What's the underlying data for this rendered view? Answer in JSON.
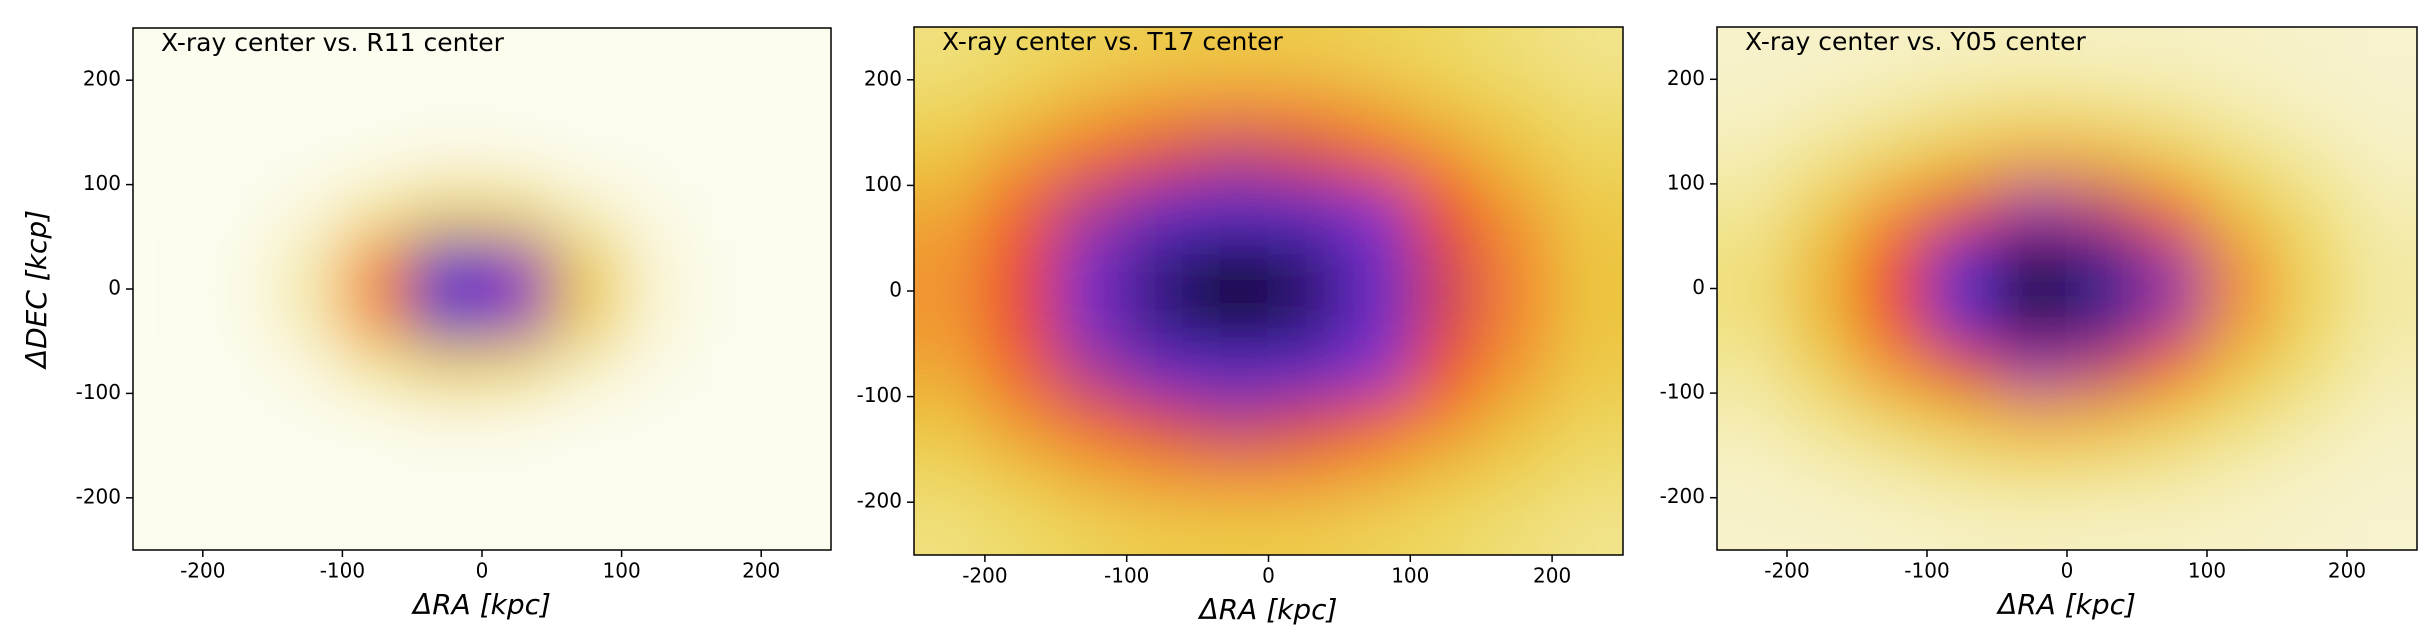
{
  "chart_data": [
    {
      "type": "heatmap",
      "title": "X-ray center vs. R11 center",
      "xlabel": "ΔRA [kpc]",
      "ylabel": "ΔDEC [kcp]",
      "xlim": [
        -250,
        250
      ],
      "ylim": [
        -250,
        250
      ],
      "xticks": [
        -200,
        -100,
        0,
        100,
        200
      ],
      "yticks": [
        -200,
        -100,
        0,
        100,
        200
      ],
      "xbins": [
        -250,
        -200,
        -150,
        -100,
        -50,
        0,
        50,
        100,
        150,
        200,
        250
      ],
      "ybins": [
        -250,
        -200,
        -150,
        -100,
        -50,
        0,
        50,
        100,
        150,
        200,
        250
      ],
      "vlim": [
        0,
        1
      ],
      "cmap": [
        "#fdfdf3",
        "#f5eebb",
        "#eedc6a",
        "#ecc13a",
        "#f3872f",
        "#f04727",
        "#8a2fc8",
        "#4a2dc8",
        "#000000"
      ],
      "values": [
        [
          0.01,
          0.01,
          0.01,
          0.01,
          0.01,
          0.01,
          0.01,
          0.01,
          0.01,
          0.01
        ],
        [
          0.01,
          0.01,
          0.01,
          0.01,
          0.01,
          0.01,
          0.01,
          0.01,
          0.01,
          0.01
        ],
        [
          0.01,
          0.01,
          0.01,
          0.02,
          0.04,
          0.03,
          0.01,
          0.01,
          0.01,
          0.01
        ],
        [
          0.01,
          0.01,
          0.05,
          0.18,
          0.31,
          0.27,
          0.12,
          0.03,
          0.01,
          0.01
        ],
        [
          0.01,
          0.02,
          0.14,
          0.49,
          0.85,
          0.74,
          0.33,
          0.07,
          0.01,
          0.01
        ],
        [
          0.01,
          0.02,
          0.14,
          0.49,
          0.85,
          0.74,
          0.33,
          0.07,
          0.01,
          0.01
        ],
        [
          0.01,
          0.01,
          0.05,
          0.18,
          0.31,
          0.27,
          0.12,
          0.03,
          0.01,
          0.01
        ],
        [
          0.01,
          0.01,
          0.01,
          0.02,
          0.04,
          0.03,
          0.01,
          0.01,
          0.01,
          0.01
        ],
        [
          0.01,
          0.01,
          0.01,
          0.01,
          0.01,
          0.01,
          0.01,
          0.01,
          0.01,
          0.01
        ],
        [
          0.01,
          0.01,
          0.01,
          0.01,
          0.01,
          0.01,
          0.01,
          0.01,
          0.01,
          0.01
        ]
      ]
    },
    {
      "type": "heatmap",
      "title": "X-ray center vs. T17 center",
      "xlabel": "ΔRA [kpc]",
      "xlim": [
        -250,
        250
      ],
      "ylim": [
        -250,
        250
      ],
      "xticks": [
        -200,
        -100,
        0,
        100,
        200
      ],
      "yticks": [
        -200,
        -100,
        0,
        100,
        200
      ],
      "xbins": [
        -250,
        -200,
        -150,
        -100,
        -50,
        0,
        50,
        100,
        150,
        200,
        250
      ],
      "ybins": [
        -250,
        -200,
        -150,
        -100,
        -50,
        0,
        50,
        100,
        150,
        200,
        250
      ],
      "vlim": [
        0,
        1
      ],
      "cmap": [
        "#fdfdf3",
        "#f5eebb",
        "#eedc6a",
        "#ecc13a",
        "#f3872f",
        "#f04727",
        "#8a2fc8",
        "#4a2dc8",
        "#000000"
      ],
      "values": [
        [
          0.22,
          0.26,
          0.3,
          0.33,
          0.34,
          0.33,
          0.3,
          0.27,
          0.23,
          0.2
        ],
        [
          0.28,
          0.35,
          0.42,
          0.47,
          0.49,
          0.48,
          0.43,
          0.36,
          0.3,
          0.24
        ],
        [
          0.36,
          0.47,
          0.57,
          0.65,
          0.69,
          0.66,
          0.59,
          0.49,
          0.38,
          0.29
        ],
        [
          0.43,
          0.58,
          0.71,
          0.83,
          0.87,
          0.85,
          0.75,
          0.61,
          0.46,
          0.34
        ],
        [
          0.47,
          0.63,
          0.79,
          0.92,
          0.97,
          0.93,
          0.82,
          0.66,
          0.5,
          0.36
        ],
        [
          0.47,
          0.63,
          0.79,
          0.92,
          0.97,
          0.93,
          0.82,
          0.66,
          0.5,
          0.36
        ],
        [
          0.43,
          0.58,
          0.71,
          0.83,
          0.87,
          0.85,
          0.75,
          0.61,
          0.46,
          0.34
        ],
        [
          0.36,
          0.47,
          0.57,
          0.65,
          0.69,
          0.66,
          0.59,
          0.49,
          0.38,
          0.29
        ],
        [
          0.28,
          0.35,
          0.42,
          0.47,
          0.49,
          0.48,
          0.43,
          0.36,
          0.3,
          0.24
        ],
        [
          0.22,
          0.26,
          0.3,
          0.33,
          0.34,
          0.33,
          0.3,
          0.27,
          0.23,
          0.2
        ]
      ]
    },
    {
      "type": "heatmap",
      "title": "X-ray center vs. Y05 center",
      "xlabel": "ΔRA [kpc]",
      "xlim": [
        -250,
        250
      ],
      "ylim": [
        -250,
        250
      ],
      "xticks": [
        -200,
        -100,
        0,
        100,
        200
      ],
      "yticks": [
        -200,
        -100,
        0,
        100,
        200
      ],
      "xbins": [
        -250,
        -200,
        -150,
        -100,
        -50,
        0,
        50,
        100,
        150,
        200,
        250
      ],
      "ybins": [
        -250,
        -200,
        -150,
        -100,
        -50,
        0,
        50,
        100,
        150,
        200,
        250
      ],
      "vlim": [
        0,
        1
      ],
      "cmap": [
        "#fdfdf3",
        "#f5eebb",
        "#eedc6a",
        "#ecc13a",
        "#f3872f",
        "#f04727",
        "#8a2fc8",
        "#4a2dc8",
        "#000000"
      ],
      "values": [
        [
          0.09,
          0.09,
          0.1,
          0.11,
          0.12,
          0.11,
          0.11,
          0.1,
          0.09,
          0.08
        ],
        [
          0.1,
          0.13,
          0.16,
          0.2,
          0.22,
          0.21,
          0.18,
          0.14,
          0.11,
          0.09
        ],
        [
          0.14,
          0.2,
          0.29,
          0.38,
          0.43,
          0.41,
          0.33,
          0.23,
          0.16,
          0.11
        ],
        [
          0.18,
          0.31,
          0.48,
          0.64,
          0.73,
          0.69,
          0.55,
          0.37,
          0.23,
          0.14
        ],
        [
          0.22,
          0.39,
          0.62,
          0.84,
          0.96,
          0.91,
          0.72,
          0.47,
          0.28,
          0.16
        ],
        [
          0.22,
          0.39,
          0.62,
          0.84,
          0.96,
          0.91,
          0.72,
          0.47,
          0.28,
          0.16
        ],
        [
          0.18,
          0.31,
          0.48,
          0.64,
          0.73,
          0.69,
          0.55,
          0.37,
          0.23,
          0.14
        ],
        [
          0.14,
          0.2,
          0.29,
          0.38,
          0.43,
          0.41,
          0.33,
          0.23,
          0.16,
          0.11
        ],
        [
          0.1,
          0.13,
          0.16,
          0.2,
          0.22,
          0.21,
          0.18,
          0.14,
          0.11,
          0.09
        ],
        [
          0.09,
          0.09,
          0.1,
          0.11,
          0.12,
          0.11,
          0.11,
          0.1,
          0.09,
          0.08
        ]
      ]
    }
  ]
}
